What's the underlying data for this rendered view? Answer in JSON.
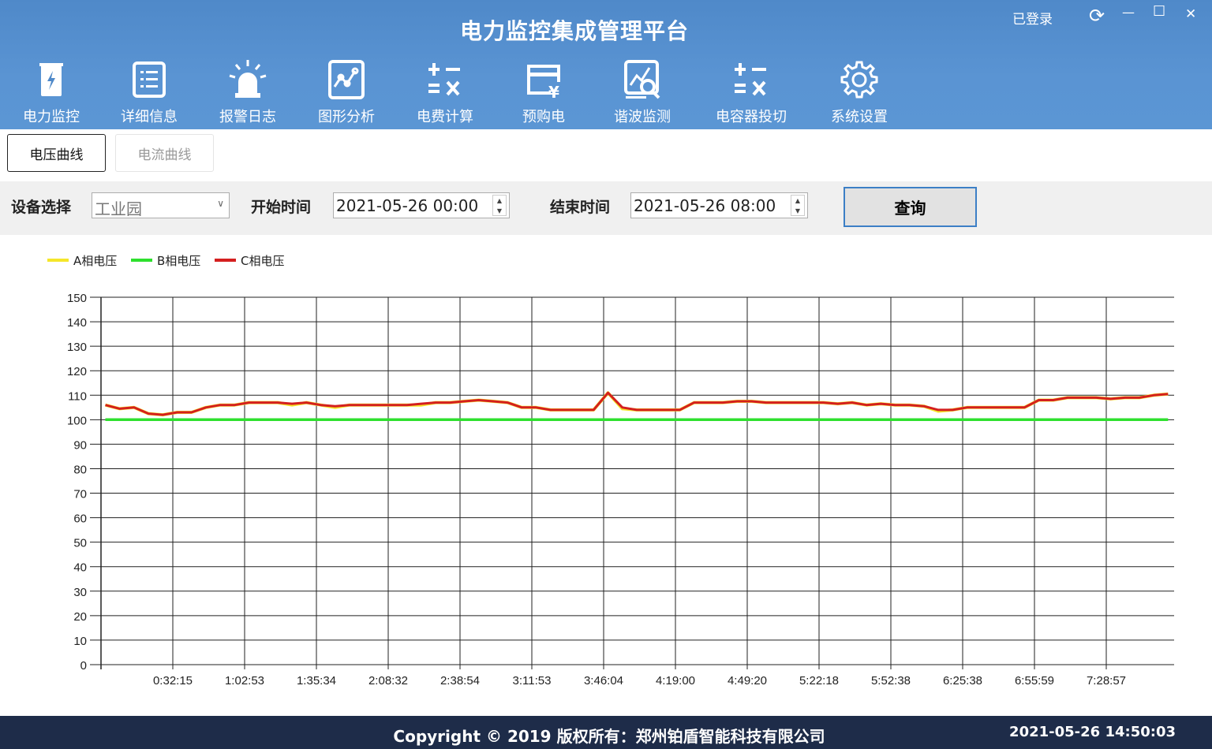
{
  "header": {
    "title": "电力监控集成管理平台",
    "login_status": "已登录"
  },
  "window": {
    "refresh": "⟳",
    "minimize": "—",
    "maximize": "☐",
    "close": "✕"
  },
  "toolbar": [
    {
      "label": "电力监控",
      "icon": "power-monitor-icon"
    },
    {
      "label": "详细信息",
      "icon": "list-icon"
    },
    {
      "label": "报警日志",
      "icon": "alarm-light-icon"
    },
    {
      "label": "图形分析",
      "icon": "graph-analysis-icon"
    },
    {
      "label": "电费计算",
      "icon": "calculator-icon"
    },
    {
      "label": "预购电",
      "icon": "prepaid-card-icon"
    },
    {
      "label": "谐波监测",
      "icon": "harmonic-search-icon"
    },
    {
      "label": "电容器投切",
      "icon": "calculator-icon"
    },
    {
      "label": "系统设置",
      "icon": "gear-icon"
    }
  ],
  "tabs": [
    {
      "label": "电压曲线",
      "active": true
    },
    {
      "label": "电流曲线",
      "active": false
    }
  ],
  "filter": {
    "device_label": "设备选择",
    "device_value": "工业园",
    "start_label": "开始时间",
    "start_value": "2021-05-26 00:00",
    "end_label": "结束时间",
    "end_value": "2021-05-26 08:00",
    "query_label": "查询"
  },
  "chart_data": {
    "type": "line",
    "legend_position": "top-left",
    "grid": true,
    "ylim": [
      0,
      150
    ],
    "yticks": [
      0,
      10,
      20,
      30,
      40,
      50,
      60,
      70,
      80,
      90,
      100,
      110,
      120,
      130,
      140,
      150
    ],
    "xtick_labels": [
      "0:32:15",
      "1:02:53",
      "1:35:34",
      "2:08:32",
      "2:38:54",
      "3:11:53",
      "3:46:04",
      "4:19:00",
      "4:49:20",
      "5:22:18",
      "5:52:38",
      "6:25:38",
      "6:55:59",
      "7:28:57"
    ],
    "series": [
      {
        "name": "A相电压",
        "color": "#f5e62a",
        "values": [
          106,
          104.5,
          105,
          102.5,
          102,
          103,
          103,
          105,
          106,
          106,
          107,
          107,
          107,
          106,
          107,
          106,
          105,
          106,
          106,
          106,
          106,
          106,
          106,
          107,
          107,
          107.5,
          108,
          107.5,
          107,
          105,
          105,
          104,
          104,
          104,
          104,
          111,
          104.5,
          104,
          104,
          104,
          104,
          107,
          107,
          107,
          107.5,
          107.5,
          107,
          107,
          107,
          107,
          107,
          106.5,
          107,
          106,
          106.5,
          106,
          106,
          105.5,
          103.5,
          104,
          105,
          105,
          105,
          105,
          105,
          108,
          108,
          109,
          109,
          109,
          108.5,
          109,
          109,
          110,
          110.5
        ]
      },
      {
        "name": "B相电压",
        "color": "#2ee02e",
        "values": [
          100,
          100,
          100,
          100,
          100,
          100,
          100,
          100,
          100,
          100,
          100,
          100,
          100,
          100,
          100,
          100,
          100,
          100,
          100,
          100,
          100,
          100,
          100,
          100,
          100,
          100,
          100,
          100,
          100,
          100,
          100,
          100,
          100,
          100,
          100,
          100,
          100,
          100,
          100,
          100,
          100,
          100,
          100,
          100,
          100,
          100,
          100,
          100,
          100,
          100,
          100,
          100,
          100,
          100,
          100,
          100,
          100,
          100,
          100,
          100,
          100,
          100,
          100,
          100,
          100,
          100,
          100,
          100,
          100,
          100,
          100,
          100,
          100,
          100,
          100
        ]
      },
      {
        "name": "C相电压",
        "color": "#d41f1f",
        "values": [
          106,
          104.5,
          105,
          102.5,
          102,
          103,
          103,
          105,
          106,
          106,
          107,
          107,
          107,
          106.5,
          107,
          106,
          105.5,
          106,
          106,
          106,
          106,
          106,
          106.5,
          107,
          107,
          107.5,
          108,
          107.5,
          107,
          105,
          105,
          104,
          104,
          104,
          104,
          111,
          105,
          104,
          104,
          104,
          104,
          107,
          107,
          107,
          107.5,
          107.5,
          107,
          107,
          107,
          107,
          107,
          106.5,
          107,
          106,
          106.5,
          106,
          106,
          105.5,
          104,
          104,
          105,
          105,
          105,
          105,
          105,
          108,
          108,
          109,
          109,
          109,
          108.5,
          109,
          109,
          110,
          110.5
        ]
      }
    ]
  },
  "footer": {
    "copyright": "Copyright © 2019  版权所有：郑州铂盾智能科技有限公司",
    "clock": "2021-05-26 14:50:03"
  }
}
